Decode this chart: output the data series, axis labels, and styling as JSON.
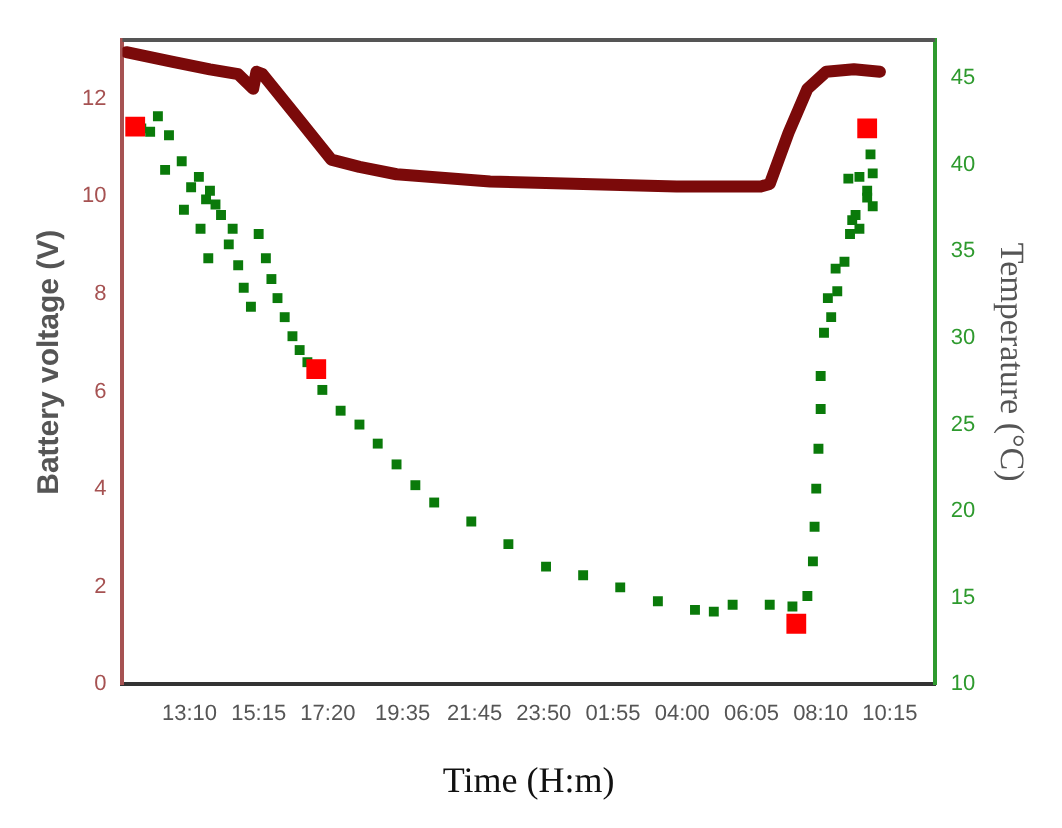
{
  "chart_data": {
    "type": "line",
    "xlabel": "Time (H:m)",
    "ylabel": "Battery voltage (V)",
    "y2label": "Temperature (°C)",
    "xlim": [
      "--01-01T11:09",
      "--01-02T11:36"
    ],
    "xticks": [
      {
        "value": "--01-01T13:10",
        "label": "13:10"
      },
      {
        "value": "--01-01T15:15",
        "label": "15:15"
      },
      {
        "value": "--01-01T17:20",
        "label": "17:20"
      },
      {
        "value": "--01-01T19:35",
        "label": "19:35"
      },
      {
        "value": "--01-01T21:45",
        "label": "21:45"
      },
      {
        "value": "--01-01T23:50",
        "label": "23:50"
      },
      {
        "value": "--01-02T01:55",
        "label": "01:55"
      },
      {
        "value": "--01-02T04:00",
        "label": "04:00"
      },
      {
        "value": "--01-02T06:05",
        "label": "06:05"
      },
      {
        "value": "--01-02T08:10",
        "label": "08:10"
      },
      {
        "value": "--01-02T10:15",
        "label": "10:15"
      }
    ],
    "ylim": [
      0,
      13.2
    ],
    "yticks": [
      0,
      2,
      4,
      6,
      8,
      10,
      12
    ],
    "y2lim": [
      10,
      47.2
    ],
    "y2ticks": [
      10,
      15,
      20,
      25,
      30,
      35,
      40,
      45
    ],
    "grid": false,
    "legend": false,
    "series": [
      {
        "color": "#7b0a0a",
        "marker": "none",
        "line_style": "solid",
        "x": [
          "--01-01T11:16",
          "--01-01T12:40",
          "--01-01T13:47",
          "--01-01T14:38",
          "--01-01T15:05",
          "--01-01T15:11",
          "--01-01T15:22",
          "--01-01T16:19",
          "--01-01T17:26",
          "--01-01T18:17",
          "--01-01T19:24",
          "--01-01T22:13",
          "--01-02T01:01",
          "--01-02T03:50",
          "--01-02T06:22",
          "--01-02T06:38",
          "--01-02T07:12",
          "--01-02T07:46",
          "--01-02T08:20",
          "--01-02T09:10",
          "--01-02T09:57"
        ],
        "values": [
          12.95,
          12.75,
          12.6,
          12.5,
          12.2,
          12.55,
          12.5,
          11.7,
          10.75,
          10.6,
          10.45,
          10.3,
          10.25,
          10.2,
          10.2,
          10.25,
          11.3,
          12.2,
          12.55,
          12.6,
          12.55
        ]
      },
      {
        "type": "scatter",
        "axis": "y2",
        "color": "#0a7a0a",
        "marker": "square",
        "x": [
          "--01-01T11:43",
          "--01-01T11:59",
          "--01-01T12:13",
          "--01-01T12:26",
          "--01-01T12:33",
          "--01-01T12:56",
          "--01-01T13:00",
          "--01-01T13:13",
          "--01-01T13:27",
          "--01-01T13:30",
          "--01-01T13:40",
          "--01-01T13:47",
          "--01-01T13:57",
          "--01-01T14:07",
          "--01-01T13:44",
          "--01-01T14:21",
          "--01-01T14:28",
          "--01-01T14:38",
          "--01-01T14:48",
          "--01-01T15:01",
          "--01-01T15:15",
          "--01-01T15:28",
          "--01-01T15:38",
          "--01-01T15:49",
          "--01-01T16:02",
          "--01-01T16:16",
          "--01-01T16:29",
          "--01-01T16:43",
          "--01-01T17:10",
          "--01-01T17:43",
          "--01-01T18:17",
          "--01-01T18:50",
          "--01-01T19:24",
          "--01-01T19:58",
          "--01-01T20:32",
          "--01-01T21:39",
          "--01-01T22:46",
          "--01-01T23:54",
          "--01-02T01:01",
          "--01-02T02:08",
          "--01-02T03:16",
          "--01-02T04:23",
          "--01-02T04:57",
          "--01-02T05:31",
          "--01-02T06:38",
          "--01-02T07:19",
          "--01-02T07:46",
          "--01-02T07:56",
          "--01-02T07:59",
          "--01-02T08:02",
          "--01-02T08:06",
          "--01-02T08:10",
          "--01-02T08:10",
          "--01-02T08:16",
          "--01-02T08:29",
          "--01-02T08:23",
          "--01-02T08:40",
          "--01-02T08:37",
          "--01-02T08:53",
          "--01-02T09:03",
          "--01-02T09:07",
          "--01-02T09:13",
          "--01-02T09:20",
          "--01-02T09:34",
          "--01-02T09:40",
          "--01-02T09:20",
          "--01-02T09:00",
          "--01-02T09:34",
          "--01-02T09:44",
          "--01-02T09:44"
        ],
        "values": [
          42.1,
          41.9,
          42.8,
          39.7,
          41.7,
          40.2,
          37.4,
          38.7,
          39.3,
          36.3,
          38.0,
          38.5,
          37.7,
          37.1,
          34.6,
          35.4,
          36.3,
          34.2,
          32.9,
          31.8,
          36.0,
          34.6,
          33.4,
          32.3,
          31.2,
          30.1,
          29.3,
          28.6,
          27.0,
          25.8,
          25.0,
          23.9,
          22.7,
          21.5,
          20.5,
          19.4,
          18.1,
          16.8,
          16.3,
          15.6,
          14.8,
          14.3,
          14.2,
          14.6,
          14.6,
          14.5,
          15.1,
          17.1,
          19.1,
          21.3,
          23.6,
          25.9,
          27.8,
          30.3,
          31.2,
          32.3,
          32.7,
          34.0,
          34.4,
          36.0,
          36.8,
          37.1,
          36.3,
          38.5,
          40.6,
          39.3,
          39.2,
          38.1,
          37.6,
          39.5
        ]
      },
      {
        "type": "scatter",
        "axis": "y2",
        "color": "#ff0000",
        "marker": "square",
        "x": [
          "--01-01T11:32",
          "--01-01T16:59",
          "--01-02T07:26",
          "--01-02T09:34"
        ],
        "values": [
          42.2,
          28.2,
          13.5,
          42.1
        ]
      }
    ]
  }
}
